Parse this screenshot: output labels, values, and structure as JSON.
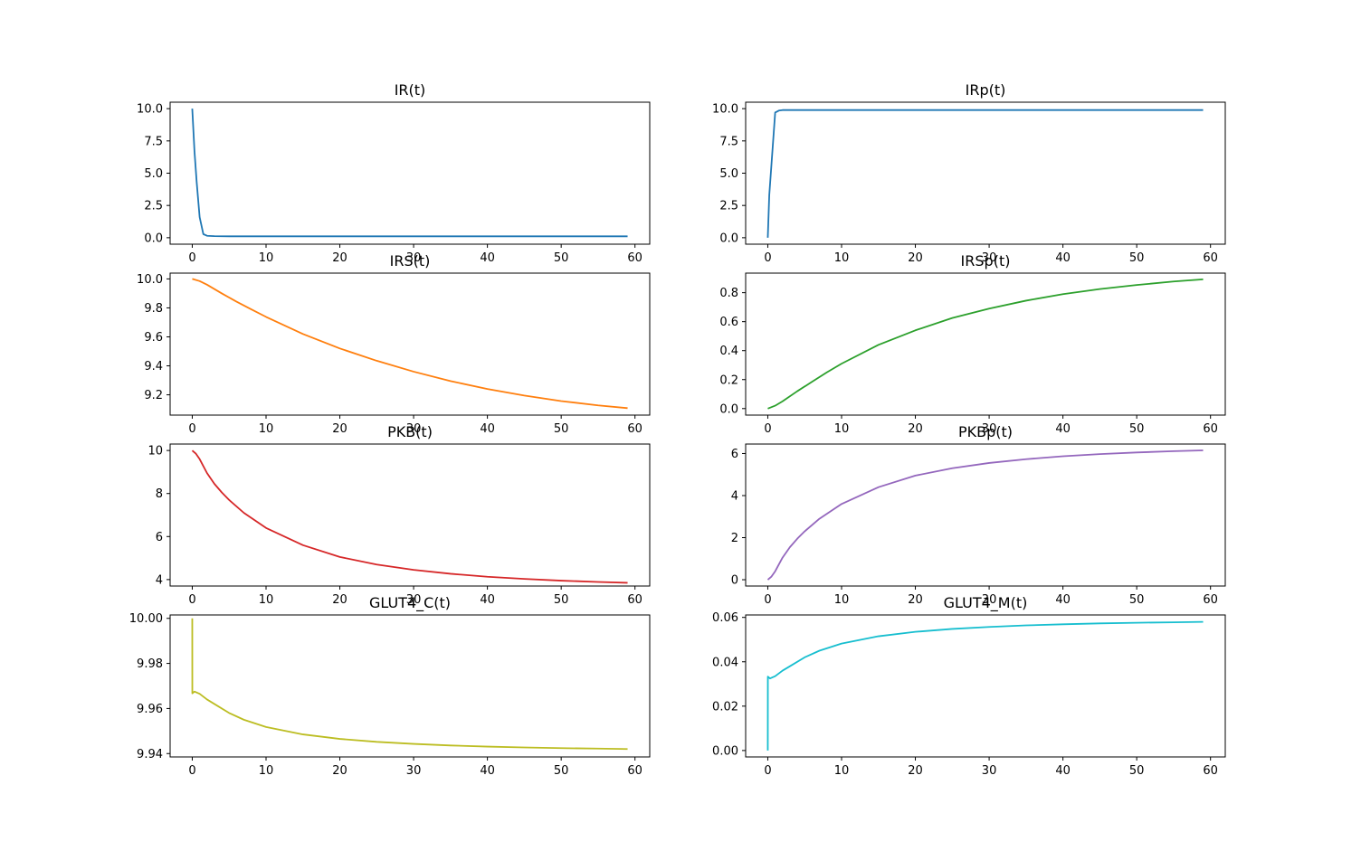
{
  "chart_data": [
    {
      "type": "line",
      "title": "IR(t)",
      "color": "#1f77b4",
      "xlim": [
        -3,
        62
      ],
      "ylim": [
        -0.5,
        10.5
      ],
      "xticks": [
        0,
        10,
        20,
        30,
        40,
        50,
        60
      ],
      "yticks": [
        0.0,
        2.5,
        5.0,
        7.5,
        10.0
      ],
      "ytick_labels": [
        "0.0",
        "2.5",
        "5.0",
        "7.5",
        "10.0"
      ],
      "x": [
        0,
        0.3,
        0.6,
        1,
        1.5,
        2,
        3,
        5,
        10,
        20,
        30,
        40,
        50,
        59
      ],
      "y": [
        10.0,
        6.7,
        4.3,
        1.6,
        0.28,
        0.15,
        0.12,
        0.11,
        0.11,
        0.11,
        0.11,
        0.11,
        0.11,
        0.11
      ]
    },
    {
      "type": "line",
      "title": "IRp(t)",
      "color": "#1f77b4",
      "xlim": [
        -3,
        62
      ],
      "ylim": [
        -0.5,
        10.5
      ],
      "xticks": [
        0,
        10,
        20,
        30,
        40,
        50,
        60
      ],
      "yticks": [
        0.0,
        2.5,
        5.0,
        7.5,
        10.0
      ],
      "ytick_labels": [
        "0.0",
        "2.5",
        "5.0",
        "7.5",
        "10.0"
      ],
      "x": [
        0,
        0.2,
        0.5,
        1,
        1.5,
        2,
        3,
        5,
        10,
        20,
        30,
        40,
        50,
        59
      ],
      "y": [
        0.0,
        3.3,
        5.7,
        9.7,
        9.85,
        9.89,
        9.89,
        9.89,
        9.89,
        9.89,
        9.89,
        9.89,
        9.89,
        9.89
      ]
    },
    {
      "type": "line",
      "title": "IRS(t)",
      "color": "#ff7f0e",
      "xlim": [
        -3,
        62
      ],
      "ylim": [
        9.06,
        10.04
      ],
      "xticks": [
        0,
        10,
        20,
        30,
        40,
        50,
        60
      ],
      "yticks": [
        9.2,
        9.4,
        9.6,
        9.8,
        10.0
      ],
      "ytick_labels": [
        "9.2",
        "9.4",
        "9.6",
        "9.8",
        "10.0"
      ],
      "x": [
        0,
        1,
        2,
        4,
        6,
        8,
        10,
        15,
        20,
        25,
        30,
        35,
        40,
        45,
        50,
        55,
        59
      ],
      "y": [
        10.0,
        9.985,
        9.96,
        9.9,
        9.843,
        9.79,
        9.738,
        9.62,
        9.52,
        9.435,
        9.36,
        9.295,
        9.24,
        9.195,
        9.157,
        9.127,
        9.108
      ]
    },
    {
      "type": "line",
      "title": "IRSp(t)",
      "color": "#2ca02c",
      "xlim": [
        -3,
        62
      ],
      "ylim": [
        -0.045,
        0.935
      ],
      "xticks": [
        0,
        10,
        20,
        30,
        40,
        50,
        60
      ],
      "yticks": [
        0.0,
        0.2,
        0.4,
        0.6,
        0.8
      ],
      "ytick_labels": [
        "0.0",
        "0.2",
        "0.4",
        "0.6",
        "0.8"
      ],
      "x": [
        0,
        1,
        2,
        4,
        6,
        8,
        10,
        15,
        20,
        25,
        30,
        35,
        40,
        45,
        50,
        55,
        59
      ],
      "y": [
        0.0,
        0.02,
        0.05,
        0.12,
        0.185,
        0.25,
        0.31,
        0.44,
        0.54,
        0.625,
        0.69,
        0.745,
        0.79,
        0.825,
        0.853,
        0.877,
        0.892
      ]
    },
    {
      "type": "line",
      "title": "PKB(t)",
      "color": "#d62728",
      "xlim": [
        -3,
        62
      ],
      "ylim": [
        3.7,
        10.3
      ],
      "xticks": [
        0,
        10,
        20,
        30,
        40,
        50,
        60
      ],
      "yticks": [
        4,
        6,
        8,
        10
      ],
      "ytick_labels": [
        "4",
        "6",
        "8",
        "10"
      ],
      "x": [
        0,
        0.5,
        1,
        2,
        3,
        4,
        5,
        7,
        10,
        15,
        20,
        25,
        30,
        35,
        40,
        45,
        50,
        55,
        59
      ],
      "y": [
        10.0,
        9.85,
        9.6,
        8.95,
        8.45,
        8.05,
        7.7,
        7.1,
        6.4,
        5.6,
        5.05,
        4.7,
        4.45,
        4.27,
        4.13,
        4.03,
        3.95,
        3.89,
        3.85
      ]
    },
    {
      "type": "line",
      "title": "PKBp(t)",
      "color": "#9467bd",
      "xlim": [
        -3,
        62
      ],
      "ylim": [
        -0.3,
        6.45
      ],
      "xticks": [
        0,
        10,
        20,
        30,
        40,
        50,
        60
      ],
      "yticks": [
        0,
        2,
        4,
        6
      ],
      "ytick_labels": [
        "0",
        "2",
        "4",
        "6"
      ],
      "x": [
        0,
        0.5,
        1,
        2,
        3,
        4,
        5,
        7,
        10,
        15,
        20,
        25,
        30,
        35,
        40,
        45,
        50,
        55,
        59
      ],
      "y": [
        0.0,
        0.15,
        0.4,
        1.05,
        1.55,
        1.95,
        2.3,
        2.9,
        3.6,
        4.4,
        4.95,
        5.3,
        5.55,
        5.73,
        5.87,
        5.97,
        6.05,
        6.11,
        6.15
      ]
    },
    {
      "type": "line",
      "title": "GLUT4_C(t)",
      "color": "#bcbd22",
      "xlim": [
        -3,
        62
      ],
      "ylim": [
        9.9385,
        10.0015
      ],
      "xticks": [
        0,
        10,
        20,
        30,
        40,
        50,
        60
      ],
      "yticks": [
        9.94,
        9.96,
        9.98,
        10.0
      ],
      "ytick_labels": [
        "9.94",
        "9.96",
        "9.98",
        "10.00"
      ],
      "x": [
        0,
        0.01,
        0.3,
        1,
        2,
        3,
        5,
        7,
        10,
        15,
        20,
        25,
        30,
        35,
        40,
        45,
        50,
        55,
        59
      ],
      "y": [
        10.0,
        9.9667,
        9.9675,
        9.9665,
        9.964,
        9.962,
        9.958,
        9.955,
        9.9518,
        9.9485,
        9.9465,
        9.9452,
        9.9443,
        9.9436,
        9.9431,
        9.9427,
        9.9424,
        9.9422,
        9.942
      ]
    },
    {
      "type": "line",
      "title": "GLUT4_M(t)",
      "color": "#17becf",
      "xlim": [
        -3,
        62
      ],
      "ylim": [
        -0.0029,
        0.0611
      ],
      "xticks": [
        0,
        10,
        20,
        30,
        40,
        50,
        60
      ],
      "yticks": [
        0.0,
        0.02,
        0.04,
        0.06
      ],
      "ytick_labels": [
        "0.00",
        "0.02",
        "0.04",
        "0.06"
      ],
      "x": [
        0,
        0.01,
        0.3,
        1,
        2,
        3,
        5,
        7,
        10,
        15,
        20,
        25,
        30,
        35,
        40,
        45,
        50,
        55,
        59
      ],
      "y": [
        0.0,
        0.0333,
        0.0325,
        0.0335,
        0.036,
        0.038,
        0.042,
        0.045,
        0.0482,
        0.0515,
        0.0535,
        0.0548,
        0.0557,
        0.0564,
        0.0569,
        0.0573,
        0.0576,
        0.0578,
        0.058
      ]
    }
  ]
}
